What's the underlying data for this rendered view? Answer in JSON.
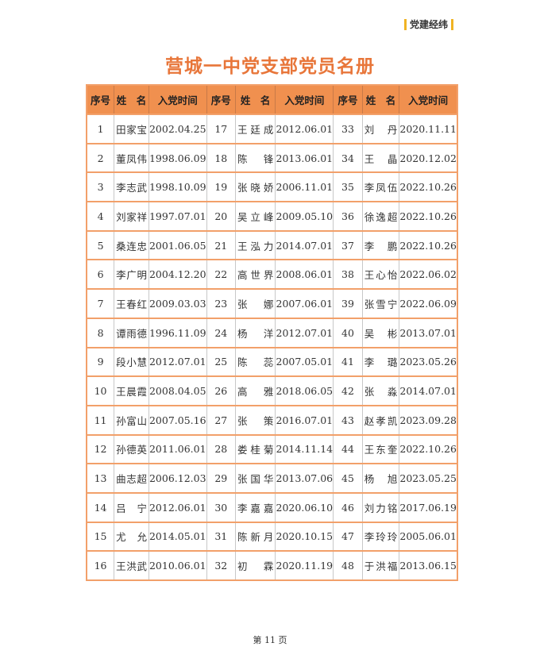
{
  "header": {
    "section_tag": "党建经纬"
  },
  "title": "营城一中党支部党员名册",
  "table": {
    "columns": [
      "序号",
      "姓　名",
      "入党时间",
      "序号",
      "姓　名",
      "入党时间",
      "序号",
      "姓　名",
      "入党时间"
    ],
    "rows": [
      [
        "1",
        "田家宝",
        "2002.04.25",
        "17",
        "王廷成",
        "2012.06.01",
        "33",
        "刘　丹",
        "2020.11.11"
      ],
      [
        "2",
        "董凤伟",
        "1998.06.09",
        "18",
        "陈　锋",
        "2013.06.01",
        "34",
        "王　晶",
        "2020.12.02"
      ],
      [
        "3",
        "李志武",
        "1998.10.09",
        "19",
        "张晓娇",
        "2006.11.01",
        "35",
        "李凤伍",
        "2022.10.26"
      ],
      [
        "4",
        "刘家祥",
        "1997.07.01",
        "20",
        "吴立峰",
        "2009.05.10",
        "36",
        "徐逸超",
        "2022.10.26"
      ],
      [
        "5",
        "桑连忠",
        "2001.06.05",
        "21",
        "王泓力",
        "2014.07.01",
        "37",
        "李　鹏",
        "2022.10.26"
      ],
      [
        "6",
        "李广明",
        "2004.12.20",
        "22",
        "高世界",
        "2008.06.01",
        "38",
        "王心怡",
        "2022.06.02"
      ],
      [
        "7",
        "王春红",
        "2009.03.03",
        "23",
        "张　娜",
        "2007.06.01",
        "39",
        "张雪宁",
        "2022.06.09"
      ],
      [
        "8",
        "谭雨德",
        "1996.11.09",
        "24",
        "杨　洋",
        "2012.07.01",
        "40",
        "吴　彬",
        "2013.07.01"
      ],
      [
        "9",
        "段小慧",
        "2012.07.01",
        "25",
        "陈　蕊",
        "2007.05.01",
        "41",
        "李　璐",
        "2023.05.26"
      ],
      [
        "10",
        "王晨霞",
        "2008.04.05",
        "26",
        "高　雅",
        "2018.06.05",
        "42",
        "张　淼",
        "2014.07.01"
      ],
      [
        "11",
        "孙富山",
        "2007.05.16",
        "27",
        "张　策",
        "2016.07.01",
        "43",
        "赵孝凯",
        "2023.09.28"
      ],
      [
        "12",
        "孙德英",
        "2011.06.01",
        "28",
        "娄桂菊",
        "2014.11.14",
        "44",
        "王东奎",
        "2022.10.26"
      ],
      [
        "13",
        "曲志超",
        "2006.12.03",
        "29",
        "张国华",
        "2013.07.06",
        "45",
        "杨　旭",
        "2023.05.25"
      ],
      [
        "14",
        "吕　宁",
        "2012.06.01",
        "30",
        "李嘉嘉",
        "2020.06.10",
        "46",
        "刘力铭",
        "2017.06.19"
      ],
      [
        "15",
        "尤　允",
        "2014.05.01",
        "31",
        "陈新月",
        "2020.10.15",
        "47",
        "李玲玲",
        "2005.06.01"
      ],
      [
        "16",
        "王洪武",
        "2010.06.01",
        "32",
        "初　霖",
        "2020.11.19",
        "48",
        "于洪福",
        "2013.06.15"
      ]
    ]
  },
  "footer": {
    "page": "第 11 页"
  }
}
